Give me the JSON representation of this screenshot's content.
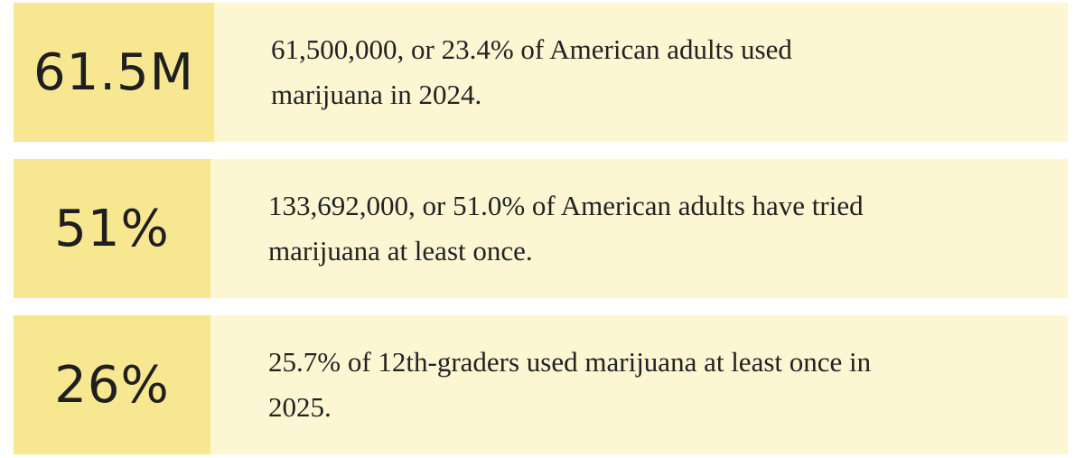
{
  "stats": [
    {
      "figure": "61.5M",
      "lines": [
        "61,500,000, or 23.4% of American adults used",
        "marijuana in 2024."
      ]
    },
    {
      "figure": "51%",
      "lines": [
        "133,692,000, or 51.0% of American adults have tried",
        "marijuana at least once."
      ]
    },
    {
      "figure": "26%",
      "lines": [
        "25.7% of 12th-graders used marijuana at least once in",
        "2025."
      ]
    }
  ]
}
